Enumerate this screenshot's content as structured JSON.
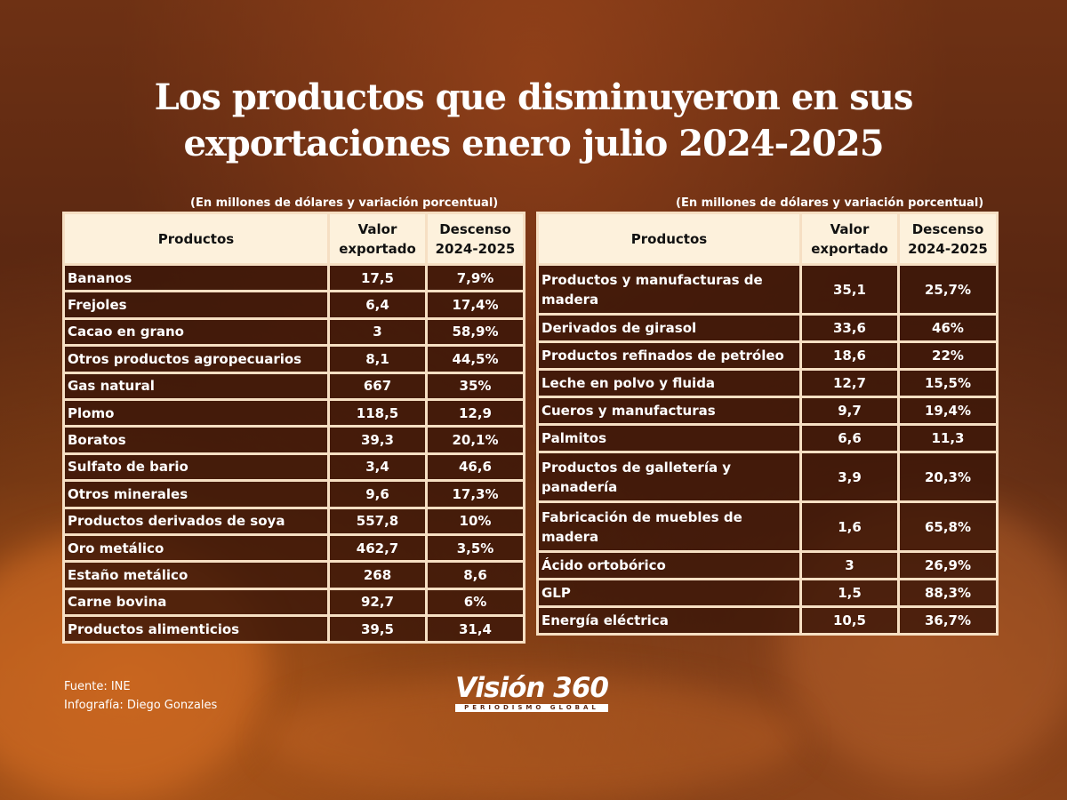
{
  "title": {
    "line1": "Los productos que disminuyeron en sus",
    "line2": "exportaciones enero julio 2024-2025"
  },
  "left_table": {
    "caption": "(En millones de dólares y variación porcentual)",
    "headers": [
      "Productos",
      "Valor exportado",
      "Descenso 2024-2025"
    ],
    "rows": [
      [
        "Bananos",
        "17,5",
        "7,9%"
      ],
      [
        "Frejoles",
        "6,4",
        "17,4%"
      ],
      [
        "Cacao en grano",
        "3",
        "58,9%"
      ],
      [
        "Otros productos agropecuarios",
        "8,1",
        "44,5%"
      ],
      [
        "Gas natural",
        "667",
        "35%"
      ],
      [
        "Plomo",
        "118,5",
        "12,9"
      ],
      [
        "Boratos",
        "39,3",
        "20,1%"
      ],
      [
        "Sulfato de bario",
        "3,4",
        "46,6"
      ],
      [
        "Otros minerales",
        "9,6",
        "17,3%"
      ],
      [
        "Productos derivados de soya",
        "557,8",
        "10%"
      ],
      [
        "Oro metálico",
        "462,7",
        "3,5%"
      ],
      [
        "Estaño metálico",
        "268",
        "8,6"
      ],
      [
        "Carne bovina",
        "92,7",
        "6%"
      ],
      [
        "Productos alimenticios",
        "39,5",
        "31,4"
      ]
    ]
  },
  "right_table": {
    "caption": "(En millones de dólares y variación porcentual)",
    "headers": [
      "Productos",
      "Valor exportado",
      "Descenso 2024-2025"
    ],
    "rows": [
      [
        "Productos y manufacturas de madera",
        "35,1",
        "25,7%"
      ],
      [
        "Derivados de girasol",
        "33,6",
        "46%"
      ],
      [
        "Productos refinados de petróleo",
        "18,6",
        "22%"
      ],
      [
        "Leche en polvo y fluida",
        "12,7",
        "15,5%"
      ],
      [
        "Cueros y manufacturas",
        "9,7",
        "19,4%"
      ],
      [
        "Palmitos",
        "6,6",
        "11,3"
      ],
      [
        "Productos de galletería y panadería",
        "3,9",
        "20,3%"
      ],
      [
        "Fabricación de muebles de madera",
        "1,6",
        "65,8%"
      ],
      [
        "Ácido ortobórico",
        "3",
        "26,9%"
      ],
      [
        "GLP",
        "1,5",
        "88,3%"
      ],
      [
        "Energía eléctrica",
        "10,5",
        "36,7%"
      ]
    ]
  },
  "footer": {
    "source": "Fuente: INE",
    "credit": "Infografía: Diego Gonzales"
  },
  "logo": {
    "name": "Visión 360",
    "tagline": "PERIODISMO GLOBAL"
  },
  "colors": {
    "header_bg": "#fdf1dc",
    "border": "#f6dfc3",
    "cell_bg": "#3a1608",
    "background": "#5a2711"
  }
}
